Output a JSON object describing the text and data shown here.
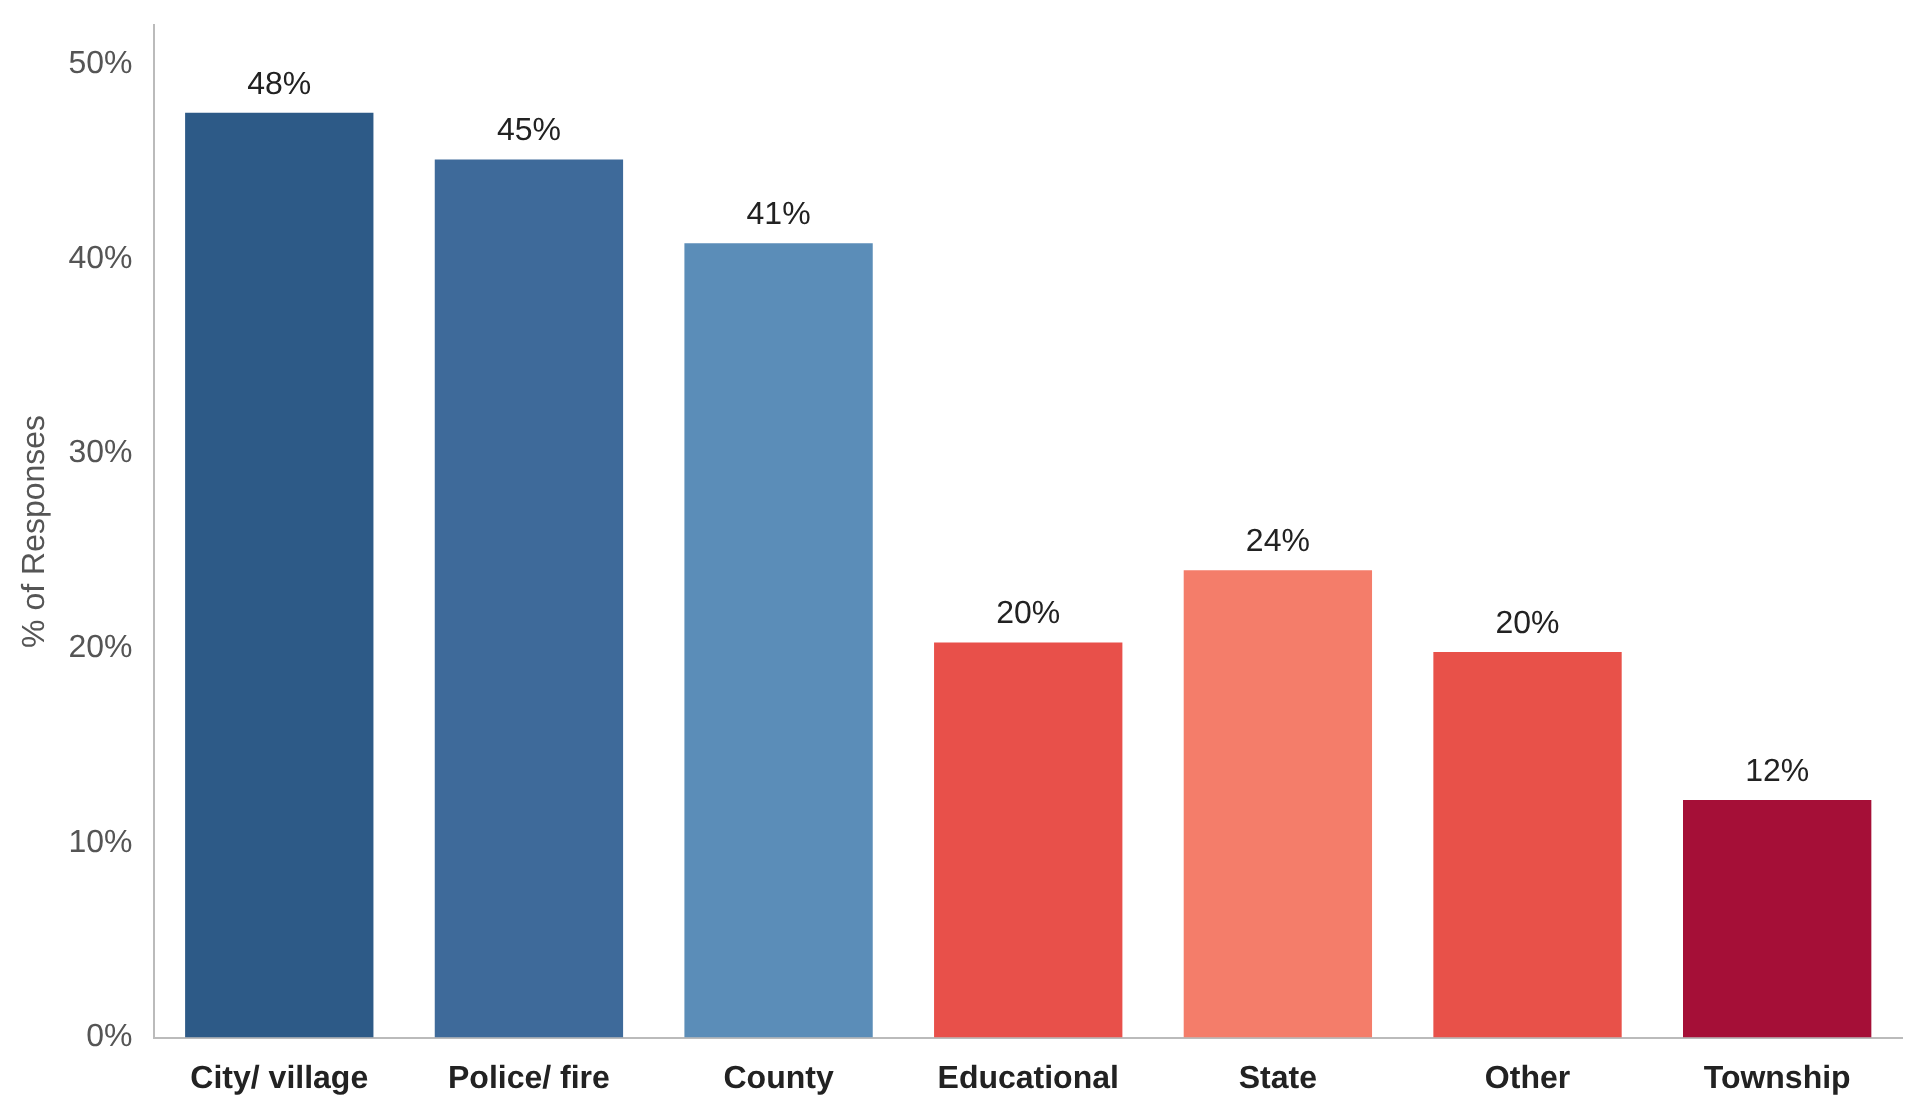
{
  "chart_data": {
    "type": "bar",
    "ylabel": "% of Responses",
    "categories": [
      "City/ village",
      "Police/ fire",
      "County",
      "Educational",
      "State",
      "Other",
      "Township"
    ],
    "values": [
      47.5,
      45.1,
      40.8,
      20.3,
      24.0,
      19.8,
      12.2
    ],
    "value_labels": [
      "48%",
      "45%",
      "41%",
      "20%",
      "24%",
      "20%",
      "12%"
    ],
    "colors": [
      "#2d5a87",
      "#3e6a9a",
      "#5b8db8",
      "#e8504a",
      "#f47d6a",
      "#e85149",
      "#a50f37"
    ],
    "ylim": [
      0,
      52
    ],
    "yticks": [
      {
        "value": 0,
        "label": "0%"
      },
      {
        "value": 10,
        "label": "10%"
      },
      {
        "value": 20,
        "label": "20%"
      },
      {
        "value": 30,
        "label": "30%"
      },
      {
        "value": 40,
        "label": "40%"
      },
      {
        "value": 50,
        "label": "50%"
      }
    ],
    "grid": false,
    "legend": false
  }
}
